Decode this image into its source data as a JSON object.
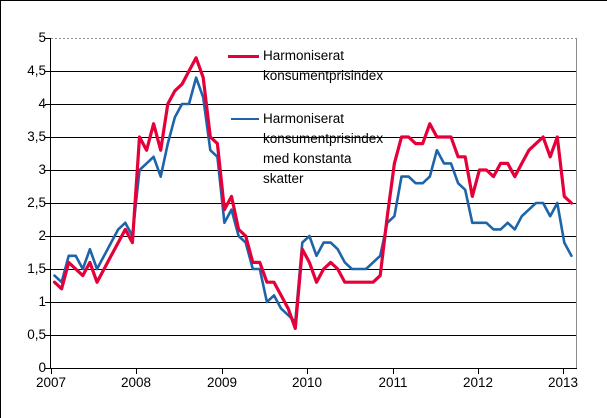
{
  "chart_data": {
    "type": "line",
    "title": "",
    "x_start": "2007-01",
    "x_end": "2013-02",
    "x_tick_labels": [
      "2007",
      "2008",
      "2009",
      "2010",
      "2011",
      "2012",
      "2013"
    ],
    "y_axis": {
      "tick_labels_top_to_bottom": [
        "5",
        "4,5",
        "4",
        "3,5",
        "3",
        "2,5",
        "2",
        "1,5",
        "1",
        "0,5",
        "0"
      ],
      "ylim": [
        0,
        5
      ],
      "grid_step": 0.5,
      "grid_on": true
    },
    "colors": {
      "hicp_line": "#e5003a",
      "hicp_ct_line": "#1e64a8",
      "gridline": "#000000",
      "top_border_dotted": "#909090",
      "right_border": "#8c8c8c",
      "background": "#ffffff"
    },
    "legend_position": "top-center-inside",
    "series": [
      {
        "name": "Harmoniserat konsumentprisindex",
        "legend_lines": [
          "Harmoniserat",
          "konsumentprisindex"
        ],
        "color": "#e5003a",
        "values": [
          1.3,
          1.2,
          1.6,
          1.5,
          1.4,
          1.6,
          1.3,
          1.5,
          1.7,
          1.9,
          2.1,
          1.9,
          3.5,
          3.3,
          3.7,
          3.3,
          4.0,
          4.2,
          4.3,
          4.5,
          4.7,
          4.4,
          3.5,
          3.4,
          2.4,
          2.6,
          2.1,
          2.0,
          1.6,
          1.6,
          1.3,
          1.3,
          1.1,
          0.9,
          0.6,
          1.8,
          1.6,
          1.3,
          1.5,
          1.6,
          1.5,
          1.3,
          1.3,
          1.3,
          1.3,
          1.3,
          1.4,
          2.3,
          3.1,
          3.5,
          3.5,
          3.4,
          3.4,
          3.7,
          3.5,
          3.5,
          3.5,
          3.2,
          3.2,
          2.6,
          3.0,
          3.0,
          2.9,
          3.1,
          3.1,
          2.9,
          3.1,
          3.3,
          3.4,
          3.5,
          3.2,
          3.5,
          2.6,
          2.5
        ]
      },
      {
        "name": "Harmoniserat konsumentprisindex med konstanta skatter",
        "legend_lines": [
          "Harmoniserat",
          "konsumentprisindex",
          "med konstanta",
          "skatter"
        ],
        "color": "#1e64a8",
        "values": [
          1.4,
          1.3,
          1.7,
          1.7,
          1.5,
          1.8,
          1.5,
          1.7,
          1.9,
          2.1,
          2.2,
          2.0,
          3.0,
          3.1,
          3.2,
          2.9,
          3.4,
          3.8,
          4.0,
          4.0,
          4.4,
          4.1,
          3.3,
          3.2,
          2.2,
          2.4,
          2.0,
          1.9,
          1.5,
          1.5,
          1.0,
          1.1,
          0.9,
          0.8,
          0.7,
          1.9,
          2.0,
          1.7,
          1.9,
          1.9,
          1.8,
          1.6,
          1.5,
          1.5,
          1.5,
          1.6,
          1.7,
          2.2,
          2.3,
          2.9,
          2.9,
          2.8,
          2.8,
          2.9,
          3.3,
          3.1,
          3.1,
          2.8,
          2.7,
          2.2,
          2.2,
          2.2,
          2.1,
          2.1,
          2.2,
          2.1,
          2.3,
          2.4,
          2.5,
          2.5,
          2.3,
          2.5,
          1.9,
          1.7
        ]
      }
    ]
  }
}
